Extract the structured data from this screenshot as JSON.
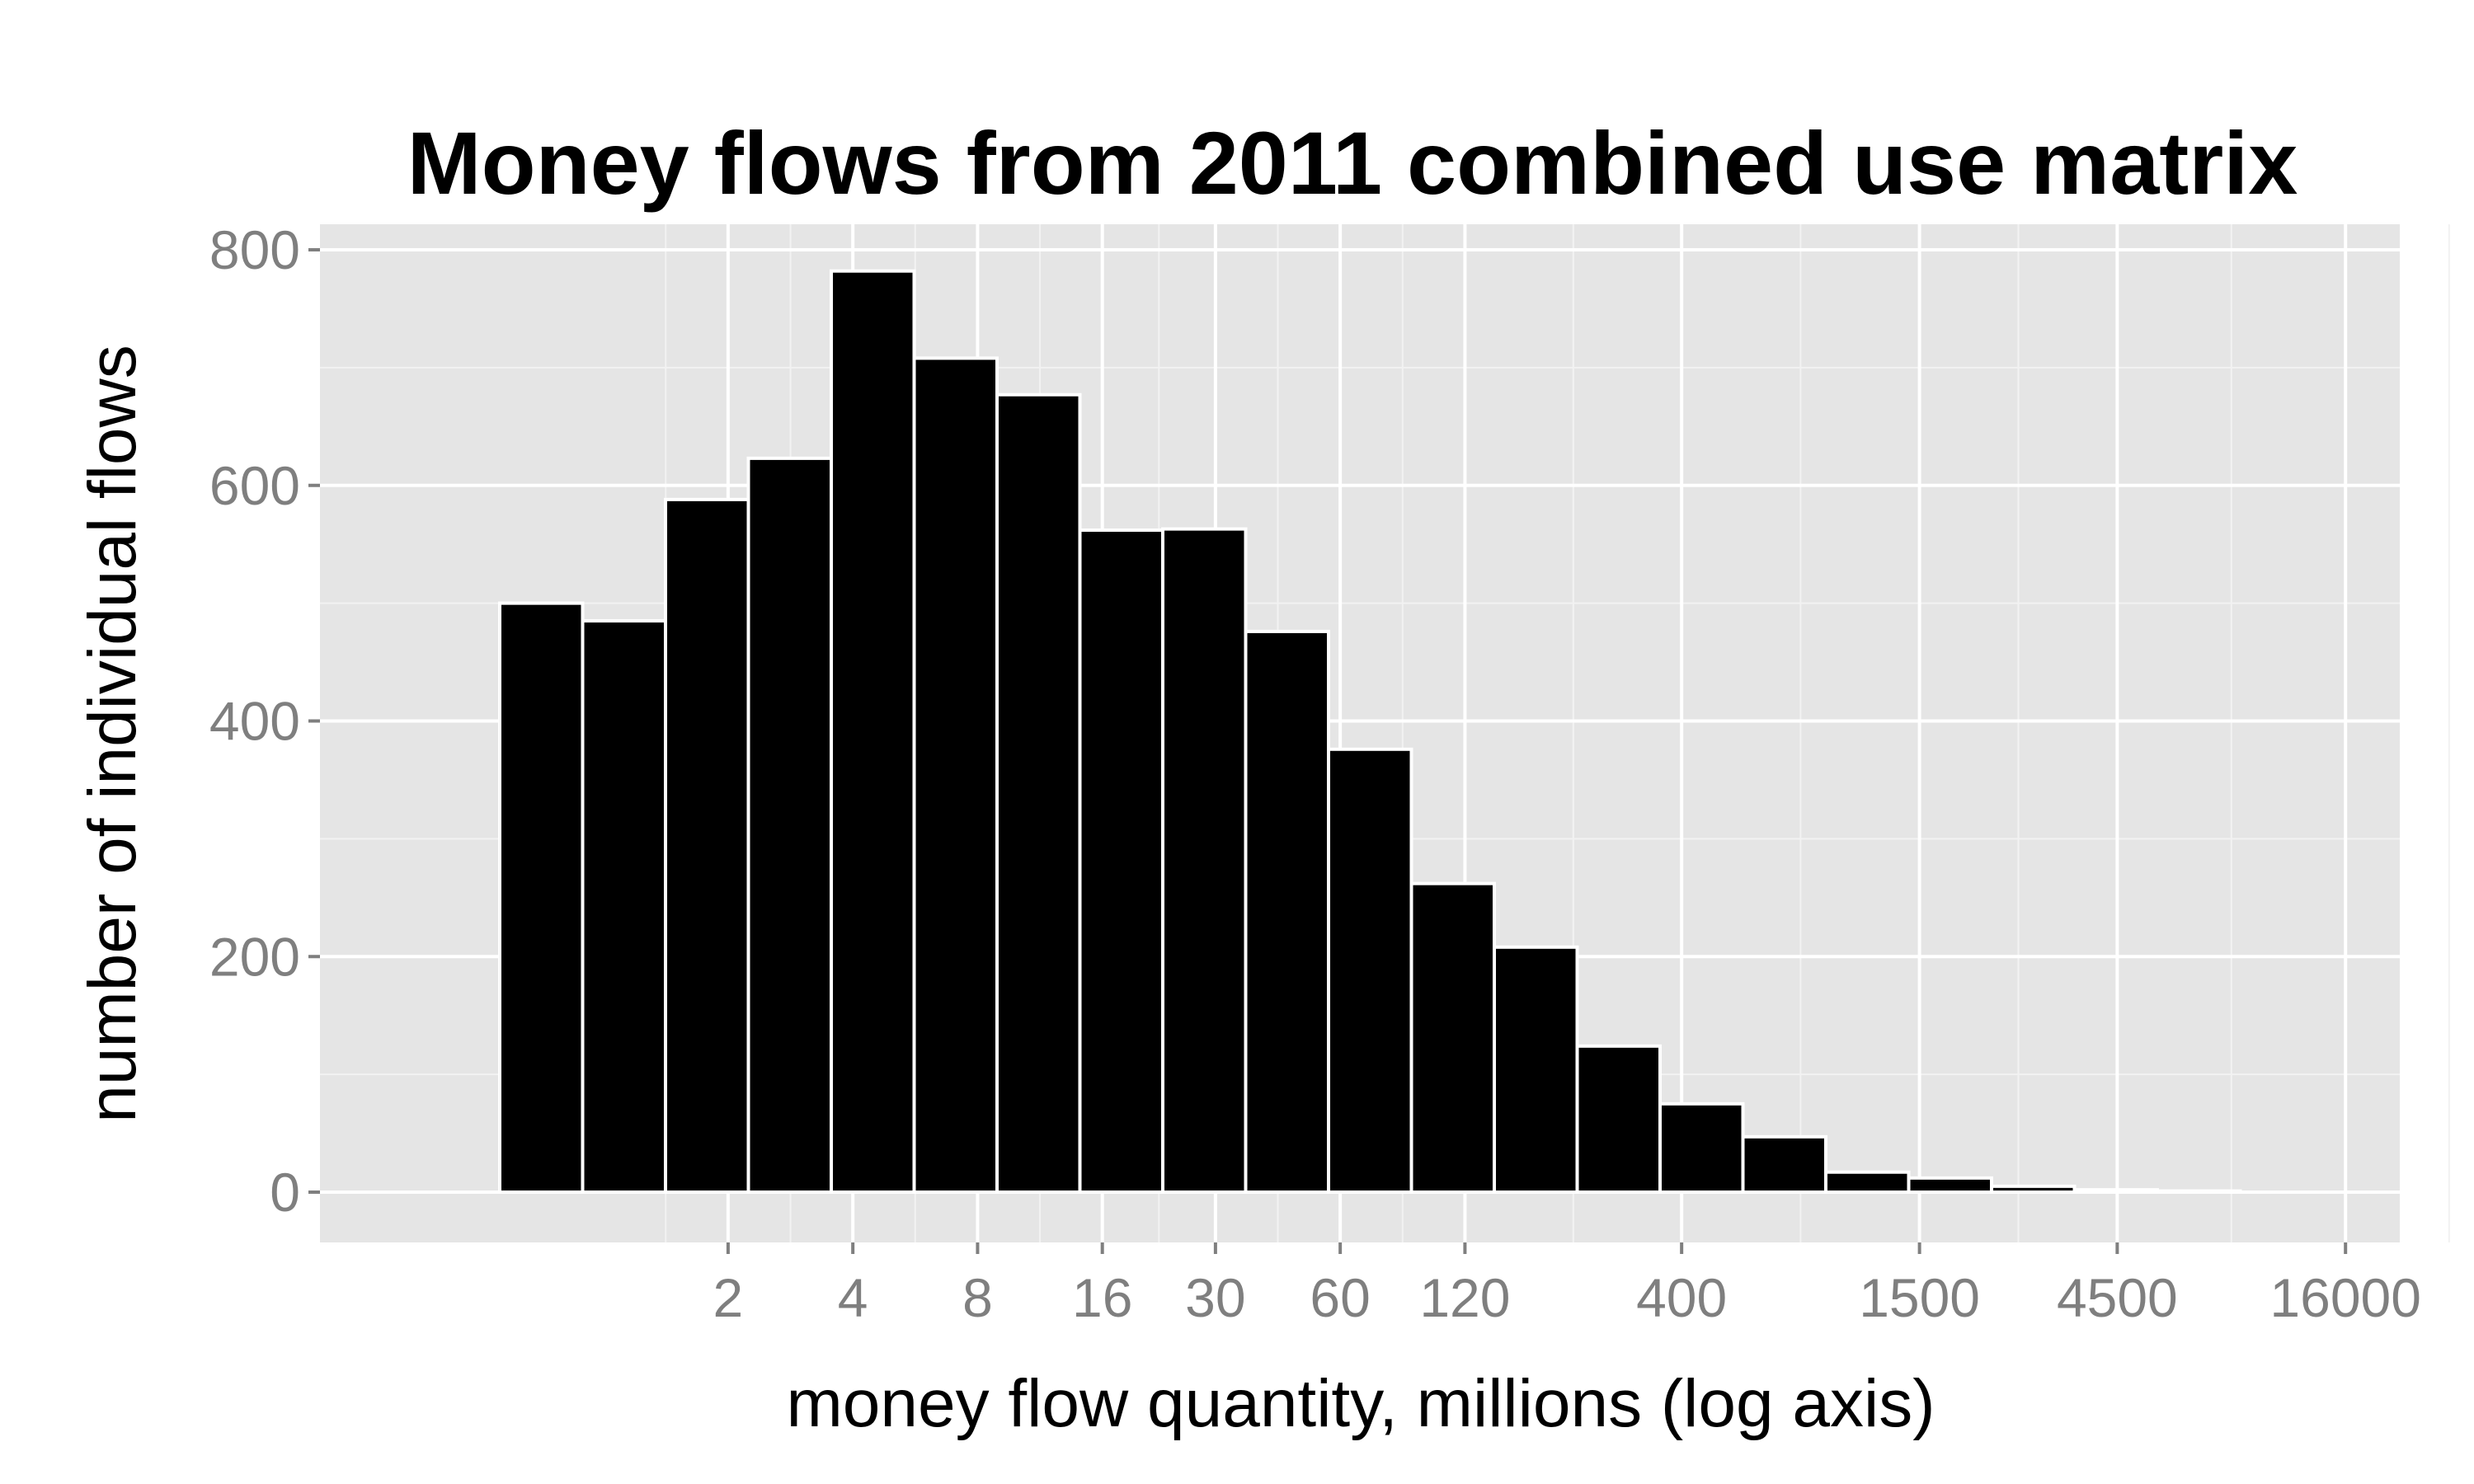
{
  "chart_data": {
    "type": "bar",
    "title": "Money flows from 2011 combined use matrix",
    "xlabel": "money flow quantity, millions (log axis)",
    "ylabel": "number of individual flows",
    "x_scale": "log",
    "x_ticks": [
      "2",
      "4",
      "8",
      "16",
      "30",
      "60",
      "120",
      "400",
      "1500",
      "4500",
      "16000"
    ],
    "y_ticks": [
      "0",
      "200",
      "400",
      "600",
      "800"
    ],
    "ylim": [
      -40,
      800
    ],
    "grid": true,
    "legend": "none",
    "bar_bins_log10": [
      [
        -0.25,
        -0.05
      ],
      [
        -0.05,
        0.15
      ],
      [
        0.15,
        0.35
      ],
      [
        0.35,
        0.55
      ],
      [
        0.55,
        0.75
      ],
      [
        0.75,
        0.95
      ],
      [
        0.95,
        1.15
      ],
      [
        1.15,
        1.35
      ],
      [
        1.35,
        1.55
      ],
      [
        1.55,
        1.75
      ],
      [
        1.75,
        1.95
      ],
      [
        1.95,
        2.15
      ],
      [
        2.15,
        2.35
      ],
      [
        2.35,
        2.55
      ],
      [
        2.55,
        2.75
      ],
      [
        2.75,
        2.95
      ],
      [
        2.95,
        3.15
      ],
      [
        3.15,
        3.35
      ],
      [
        3.35,
        3.55
      ],
      [
        3.55,
        3.75
      ],
      [
        3.75,
        3.95
      ],
      [
        3.95,
        4.15
      ],
      [
        4.15,
        4.35
      ],
      [
        4.35,
        4.55
      ]
    ],
    "values": [
      500,
      485,
      588,
      623,
      782,
      708,
      677,
      562,
      563,
      476,
      376,
      262,
      208,
      124,
      75,
      47,
      17,
      12,
      5,
      2,
      1,
      0,
      0,
      0
    ],
    "colors": {
      "bar_fill": "#000000",
      "bar_outline": "#ffffff",
      "panel_background": "#e5e5e5",
      "grid_major": "#ffffff",
      "grid_minor": "#f2f2f2",
      "tick_text": "#7f7f7f"
    }
  }
}
